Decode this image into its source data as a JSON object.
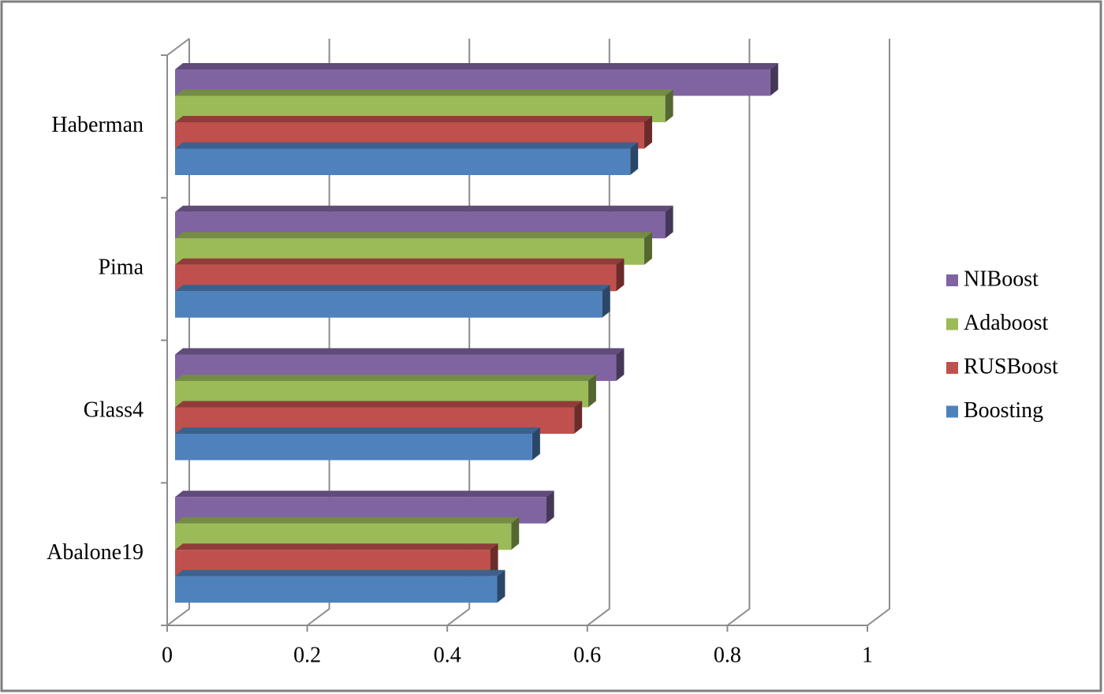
{
  "chart_data": {
    "type": "bar3d_horizontal",
    "categories": [
      "Haberman",
      "Pima",
      "Glass4",
      "Abalone19"
    ],
    "series": [
      {
        "name": "NIBoost",
        "color": "#8064a2",
        "values": [
          0.85,
          0.7,
          0.63,
          0.53
        ]
      },
      {
        "name": "Adaboost",
        "color": "#9bbb59",
        "values": [
          0.7,
          0.67,
          0.59,
          0.48
        ]
      },
      {
        "name": "RUSBoost",
        "color": "#c0504d",
        "values": [
          0.67,
          0.63,
          0.57,
          0.45
        ]
      },
      {
        "name": "Boosting",
        "color": "#4f81bd",
        "values": [
          0.65,
          0.61,
          0.51,
          0.46
        ]
      }
    ],
    "xlim": [
      0,
      1
    ],
    "xticks": [
      0,
      0.2,
      0.4,
      0.6,
      0.8,
      1
    ],
    "grid": true,
    "legend": "right"
  }
}
